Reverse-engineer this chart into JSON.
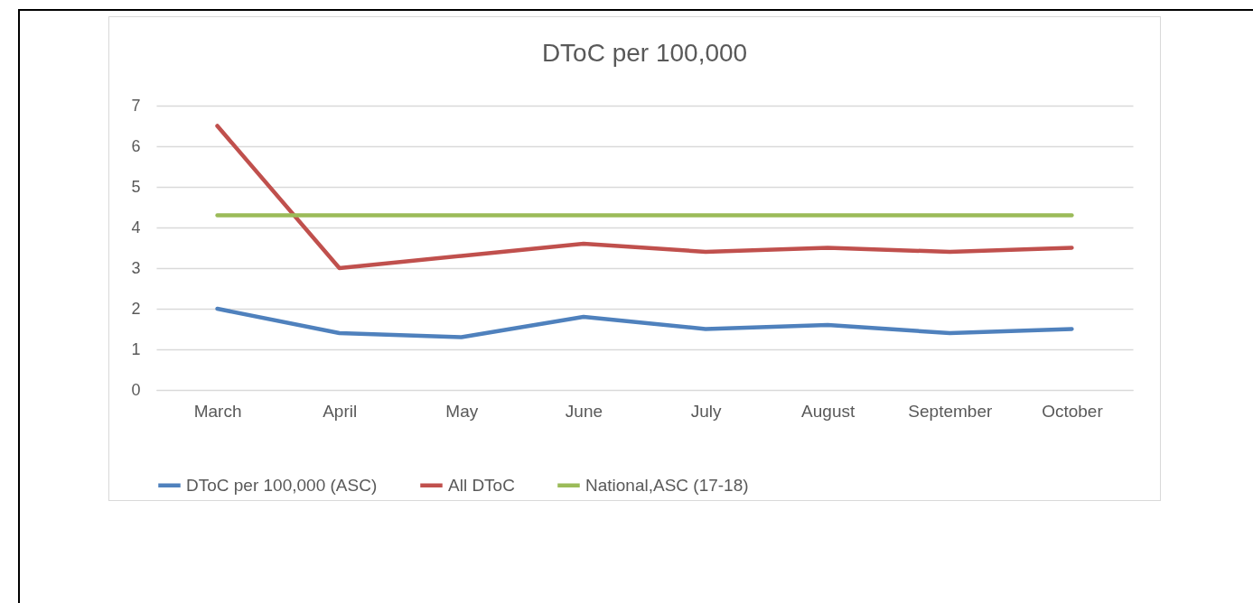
{
  "chart_data": {
    "type": "line",
    "title": "DToC per 100,000",
    "categories": [
      "March",
      "April",
      "May",
      "June",
      "July",
      "August",
      "September",
      "October"
    ],
    "series": [
      {
        "name": "DToC per 100,000 (ASC)",
        "color": "#4f81bd",
        "values": [
          2.0,
          1.4,
          1.3,
          1.8,
          1.5,
          1.6,
          1.4,
          1.5
        ]
      },
      {
        "name": "All DToC",
        "color": "#c0504d",
        "values": [
          6.5,
          3.0,
          3.3,
          3.6,
          3.4,
          3.5,
          3.4,
          3.5
        ]
      },
      {
        "name": "National,ASC (17-18)",
        "color": "#9bbb59",
        "values": [
          4.3,
          4.3,
          4.3,
          4.3,
          4.3,
          4.3,
          4.3,
          4.3
        ]
      }
    ],
    "ylim": [
      0,
      7
    ],
    "yticks": [
      0,
      1,
      2,
      3,
      4,
      5,
      6,
      7
    ],
    "grid": "y",
    "legend": "bottom",
    "marker": "none",
    "line_style": "solid"
  }
}
